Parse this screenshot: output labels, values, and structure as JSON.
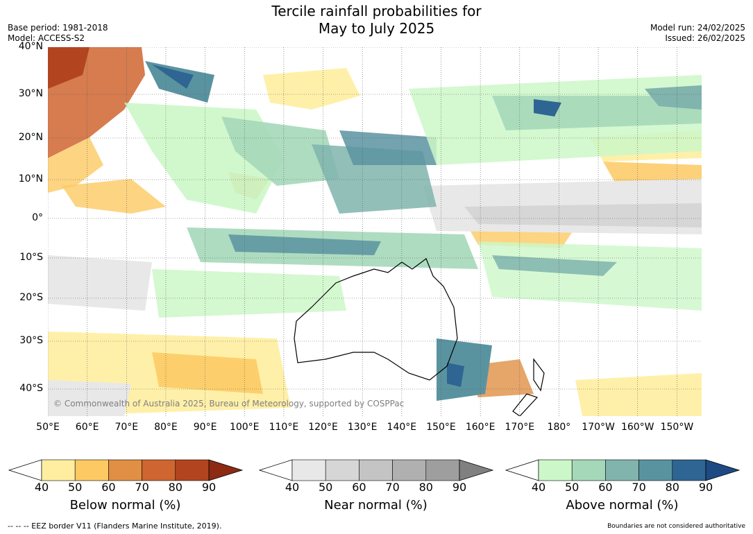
{
  "title_line1": "Tercile rainfall probabilities for",
  "title_line2": "May to July 2025",
  "base_period": "Base period: 1981-2018",
  "model": "Model: ACCESS-S2",
  "model_run": "Model run: 24/02/2025",
  "issued": "Issued: 26/02/2025",
  "copyright": "© Commonwealth of Australia 2025, Bureau of Meteorology, supported by COSPPac",
  "lat_labels": [
    "40°N",
    "30°N",
    "20°N",
    "10°N",
    "0°",
    "10°S",
    "20°S",
    "30°S",
    "40°S"
  ],
  "lon_labels": [
    "50°E",
    "60°E",
    "70°E",
    "80°E",
    "90°E",
    "100°E",
    "110°E",
    "120°E",
    "130°E",
    "140°E",
    "150°E",
    "160°E",
    "170°E",
    "180°",
    "170°W",
    "160°W",
    "150°W"
  ],
  "colorbars": [
    {
      "caption": "Below normal (%)",
      "ticks": [
        "40",
        "50",
        "60",
        "70",
        "80",
        "90"
      ],
      "colors": [
        "#ffeea0",
        "#fdc962",
        "#e08f44",
        "#cf6530",
        "#b24520",
        "#8c2a12"
      ]
    },
    {
      "caption": "Near normal (%)",
      "ticks": [
        "40",
        "50",
        "60",
        "70",
        "80",
        "90"
      ],
      "colors": [
        "#e8e8e8",
        "#d6d6d6",
        "#c4c4c4",
        "#b0b0b0",
        "#9e9e9e",
        "#808080"
      ]
    },
    {
      "caption": "Above normal (%)",
      "ticks": [
        "40",
        "50",
        "60",
        "70",
        "80",
        "90"
      ],
      "colors": [
        "#ccf7c8",
        "#a5d8b9",
        "#80b4ad",
        "#5a93a0",
        "#2e6592",
        "#1d4a83"
      ]
    }
  ],
  "footer_left": "--  --  -- EEZ border V11 (Flanders Marine Institute, 2019).",
  "footer_right": "Boundaries are not considered authoritative"
}
